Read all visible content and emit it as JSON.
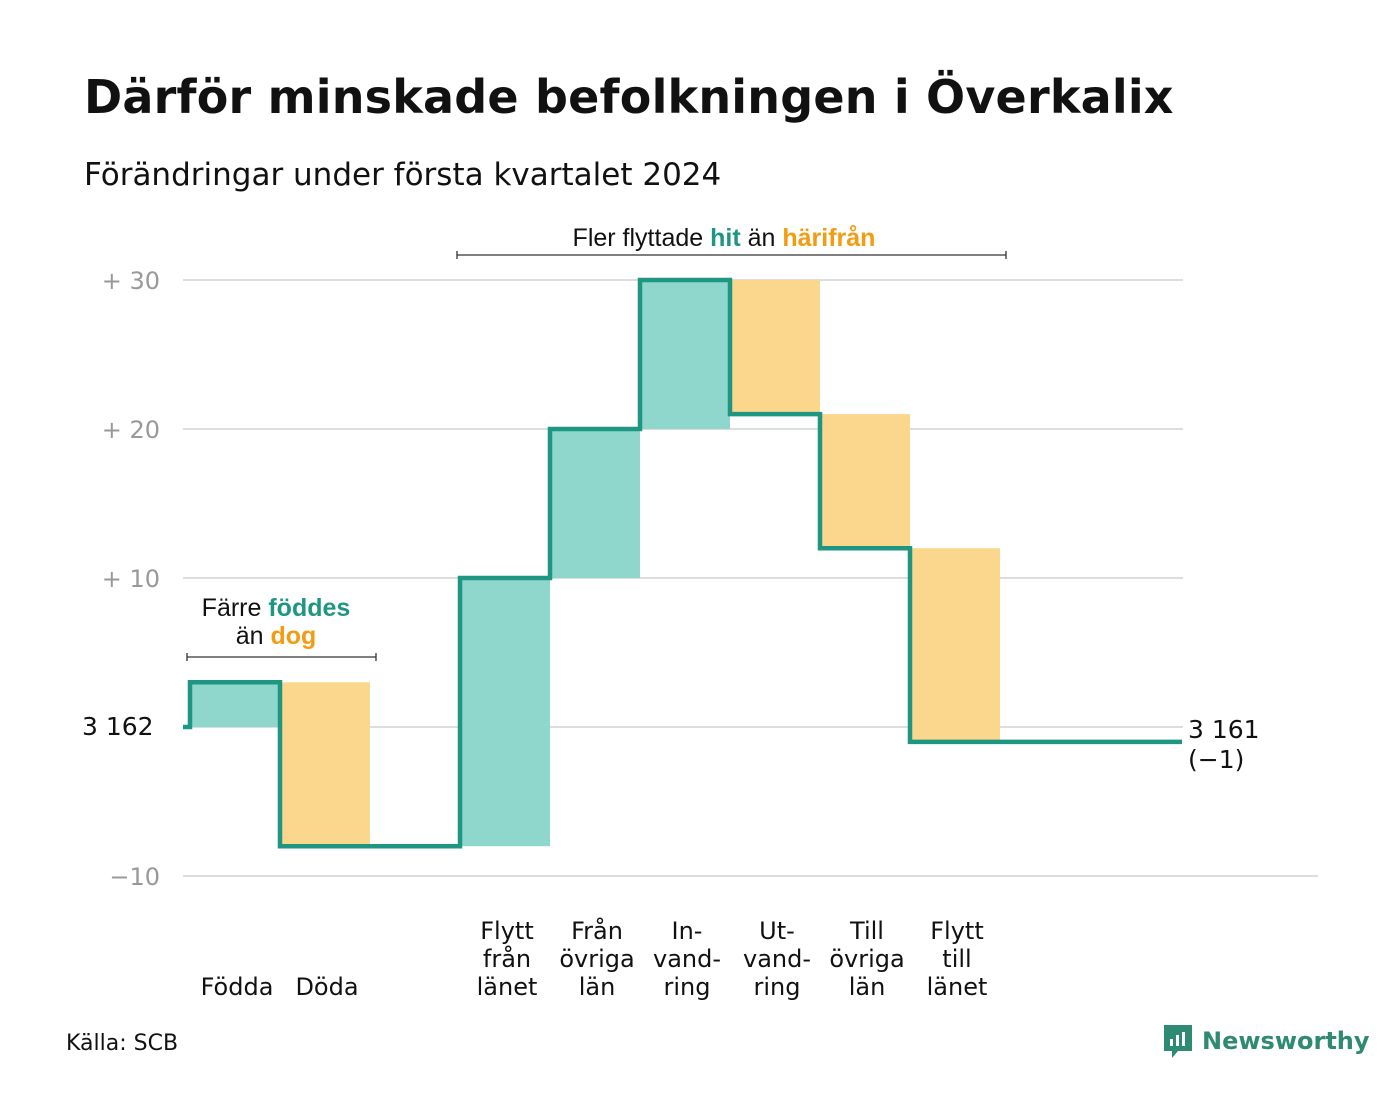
{
  "header": {
    "title": "Därför minskade befolkningen i Överkalix",
    "subtitle": "Förändringar under första kvartalet 2024"
  },
  "footer": {
    "source": "Källa: SCB",
    "brand": "Newsworthy",
    "brand_icon": "newsworthy-logo-icon"
  },
  "colors": {
    "teal_line": "#1f9682",
    "teal_fill": "#8fd6cd",
    "orange_fill": "#fbd68d",
    "orange_text": "#f39c12",
    "teal_text": "#1f9682",
    "grid": "#dddddd",
    "tick_text": "#999999"
  },
  "chart_data": {
    "type": "waterfall",
    "baseline_label": "3  162",
    "ylim": [
      -10,
      30
    ],
    "y_ticks": [
      {
        "value": 30,
        "label": "+  30"
      },
      {
        "value": 20,
        "label": "+  20"
      },
      {
        "value": 10,
        "label": "+  10"
      },
      {
        "value": -10,
        "label": "−10"
      }
    ],
    "steps": [
      {
        "label_lines": [
          "Födda"
        ],
        "start": 0,
        "end": 3,
        "kind": "in"
      },
      {
        "label_lines": [
          "Döda"
        ],
        "start": 3,
        "end": -8,
        "kind": "out"
      },
      {
        "label_lines": [
          ""
        ],
        "start": -8,
        "end": -8,
        "kind": "none"
      },
      {
        "label_lines": [
          "Flytt",
          "från",
          "länet"
        ],
        "start": -8,
        "end": 10,
        "kind": "in"
      },
      {
        "label_lines": [
          "Från",
          "övriga",
          "län"
        ],
        "start": 10,
        "end": 20,
        "kind": "in"
      },
      {
        "label_lines": [
          "In-",
          "vand-",
          "ring"
        ],
        "start": 20,
        "end": 30,
        "kind": "in"
      },
      {
        "label_lines": [
          "Ut-",
          "vand-",
          "ring"
        ],
        "start": 30,
        "end": 21,
        "kind": "out"
      },
      {
        "label_lines": [
          "Till",
          "övriga",
          "län"
        ],
        "start": 21,
        "end": 12,
        "kind": "out"
      },
      {
        "label_lines": [
          "Flytt",
          "till",
          "länet"
        ],
        "start": 12,
        "end": -1,
        "kind": "out"
      }
    ],
    "final": {
      "value": -1,
      "label_lines": [
        "3 161",
        "(−1)"
      ]
    },
    "annotations": [
      {
        "lines": [
          [
            {
              "text": "Färre ",
              "style": "plain"
            },
            {
              "text": "föddes",
              "style": "teal"
            }
          ],
          [
            {
              "text": "än ",
              "style": "plain"
            },
            {
              "text": "dog",
              "style": "orange"
            }
          ]
        ]
      },
      {
        "lines": [
          [
            {
              "text": "Fler flyttade  ",
              "style": "plain"
            },
            {
              "text": "hit",
              "style": "teal"
            },
            {
              "text": "  än ",
              "style": "plain"
            },
            {
              "text": "härifrån",
              "style": "orange"
            }
          ]
        ]
      }
    ]
  }
}
